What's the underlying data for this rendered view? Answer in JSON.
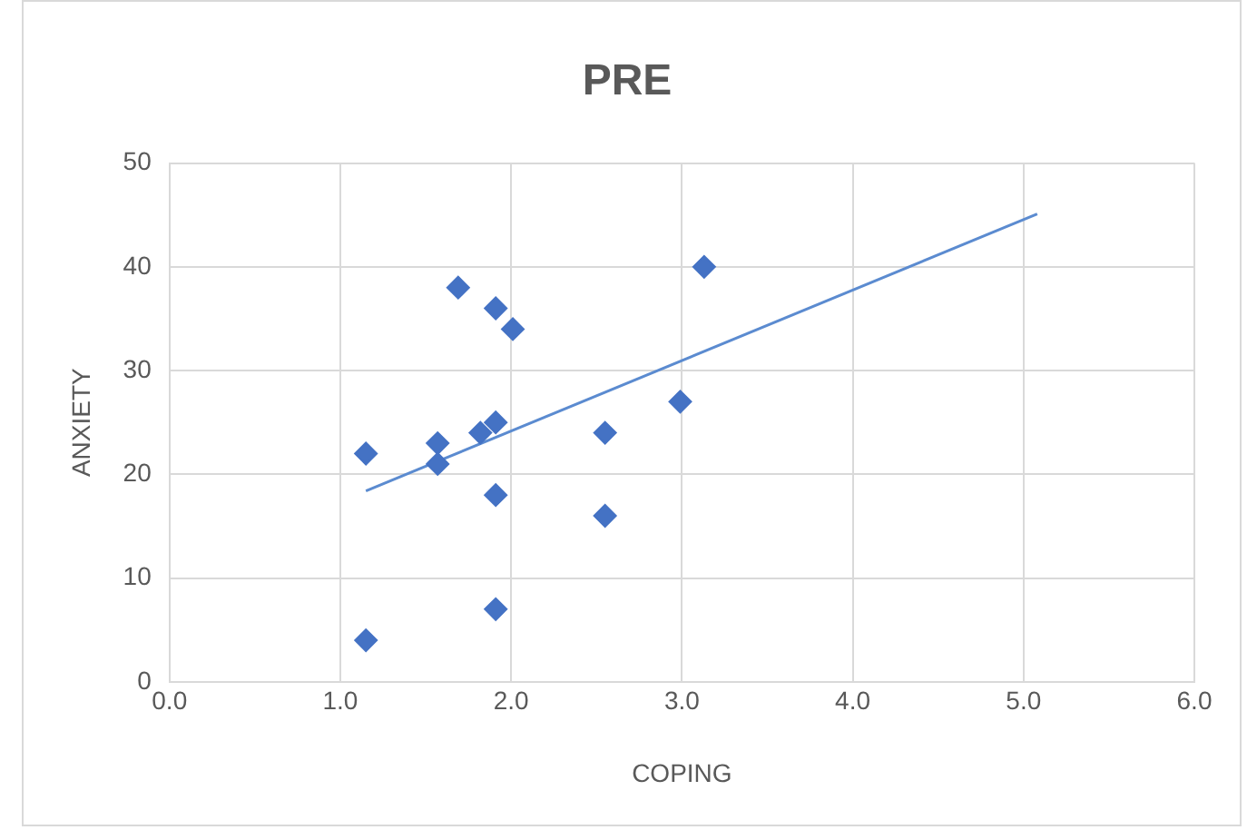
{
  "chart_data": {
    "type": "scatter",
    "title": "PRE",
    "xlabel": "COPING",
    "ylabel": "ANXIETY",
    "xlim": [
      0,
      6
    ],
    "xticks": [
      {
        "value": 0,
        "label": "0.0"
      },
      {
        "value": 1,
        "label": "1.0"
      },
      {
        "value": 2,
        "label": "2.0"
      },
      {
        "value": 3,
        "label": "3.0"
      },
      {
        "value": 4,
        "label": "4.0"
      },
      {
        "value": 5,
        "label": "5.0"
      },
      {
        "value": 6,
        "label": "6.0"
      }
    ],
    "ylim": [
      0,
      50
    ],
    "yticks": [
      0,
      10,
      20,
      30,
      40,
      50
    ],
    "grid": true,
    "legend": false,
    "series": [
      {
        "color": "#4472c4",
        "marker": "diamond",
        "x": [
          1.15,
          1.15,
          1.57,
          1.57,
          1.69,
          1.82,
          1.91,
          1.91,
          1.91,
          1.91,
          2.01,
          2.55,
          2.55,
          2.99,
          3.13
        ],
        "values": [
          22,
          4,
          23,
          21,
          38,
          24,
          25,
          36,
          18,
          7,
          34,
          24,
          16,
          27,
          40
        ]
      },
      {
        "type": "line",
        "color": "#5b8bd0",
        "marker": "none",
        "x": [
          1.15,
          5.08
        ],
        "values": [
          18.4,
          45.1
        ]
      }
    ]
  }
}
